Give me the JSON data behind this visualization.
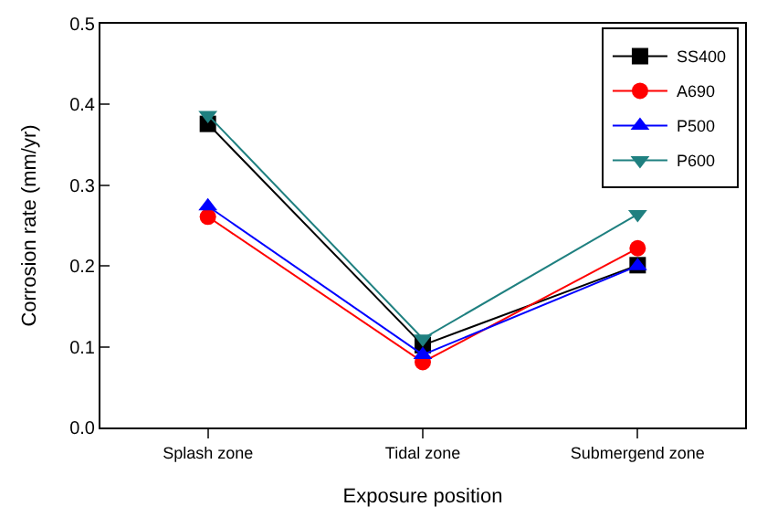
{
  "chart_data": {
    "type": "line",
    "xlabel": "Exposure position",
    "ylabel": "Corrosion rate (mm/yr)",
    "categories": [
      "Splash zone",
      "Tidal zone",
      "Submergend zone"
    ],
    "series": [
      {
        "name": "SS400",
        "color": "#000000",
        "marker": "square",
        "values": [
          0.376,
          0.102,
          0.201
        ]
      },
      {
        "name": "A690",
        "color": "#ff0000",
        "marker": "circle",
        "values": [
          0.261,
          0.081,
          0.222
        ]
      },
      {
        "name": "P500",
        "color": "#0000ff",
        "marker": "triangle",
        "values": [
          0.274,
          0.09,
          0.2
        ]
      },
      {
        "name": "P600",
        "color": "#1f8080",
        "marker": "triangle-down",
        "values": [
          0.387,
          0.11,
          0.264
        ]
      }
    ],
    "ylim": [
      0,
      0.5
    ],
    "yticks": [
      {
        "value": 0,
        "label": "0.0"
      },
      0.1,
      0.2,
      0.3,
      0.4,
      0.5
    ],
    "legend": "top right",
    "line_style": "solid"
  }
}
